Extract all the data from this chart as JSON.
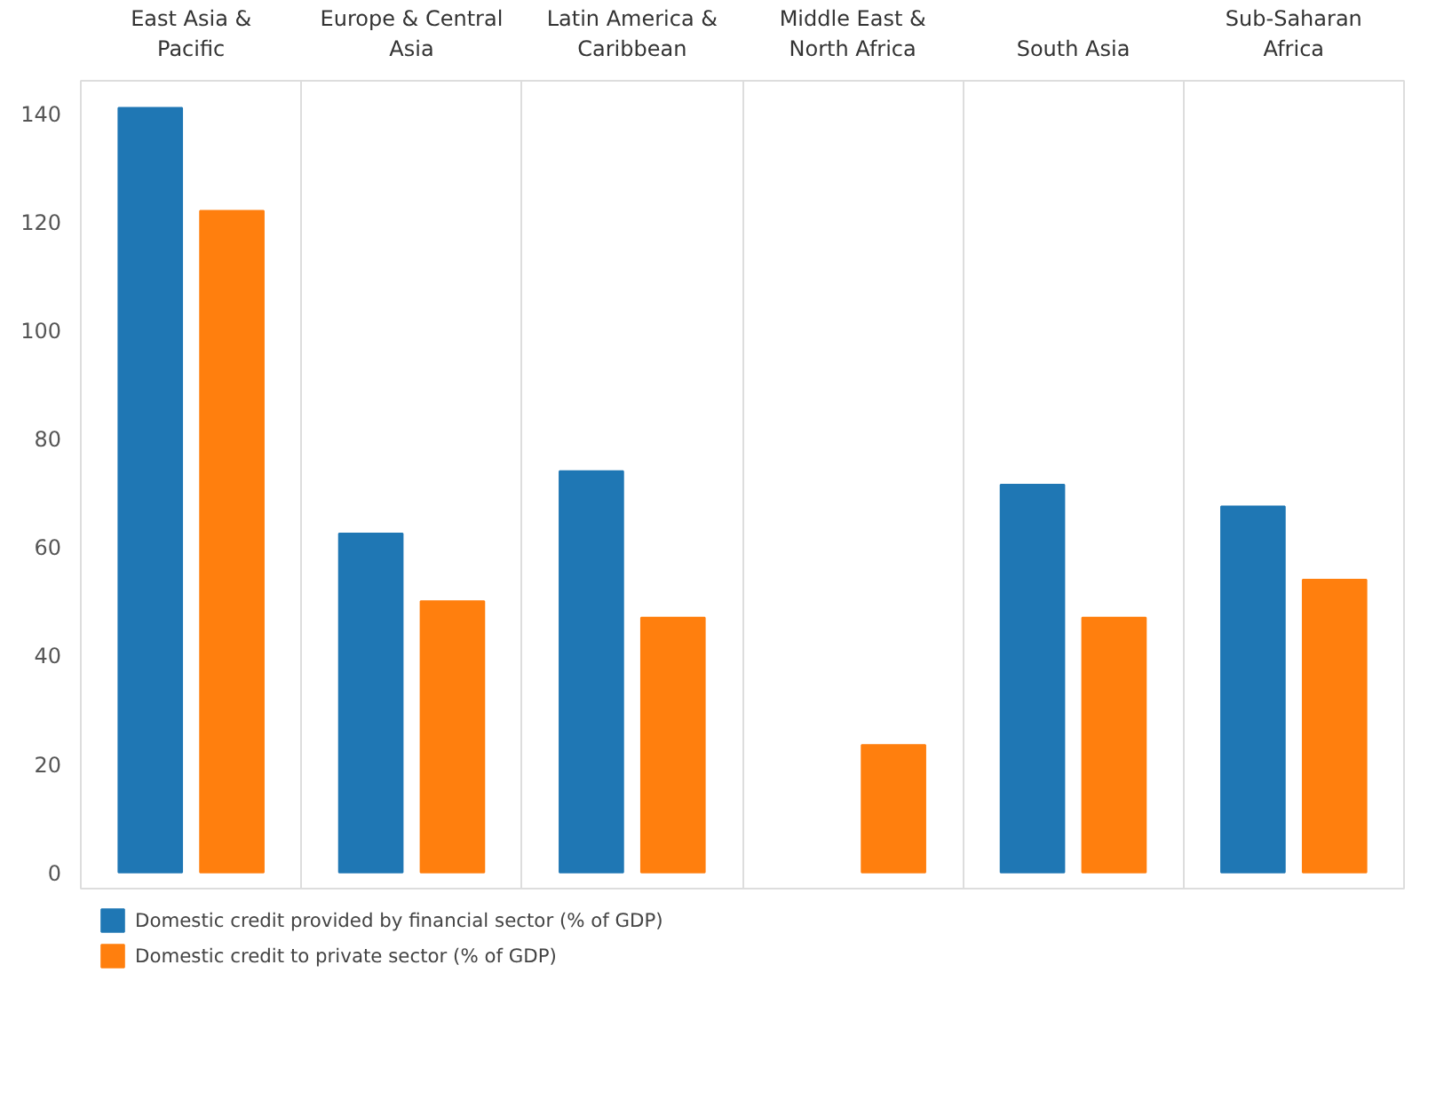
{
  "chart_data": {
    "type": "bar",
    "categories": [
      "East Asia & Pacific",
      "Europe & Central Asia",
      "Latin America & Caribbean",
      "Middle East & North Africa",
      "South Asia",
      "Sub-Saharan Africa"
    ],
    "series": [
      {
        "name": "Domestic credit provided by financial sector (% of GDP)",
        "color": "#1f77b4",
        "values": [
          141,
          62.5,
          74,
          null,
          71.5,
          67.5
        ]
      },
      {
        "name": "Domestic credit to private sector (% of GDP)",
        "color": "#ff7f0e",
        "values": [
          122,
          50,
          47,
          23.5,
          47,
          54
        ]
      }
    ],
    "ylim": [
      -3,
      146
    ],
    "yticks": [
      0,
      20,
      40,
      60,
      80,
      100,
      120,
      140
    ],
    "grid": false,
    "legend": "bottom left"
  }
}
